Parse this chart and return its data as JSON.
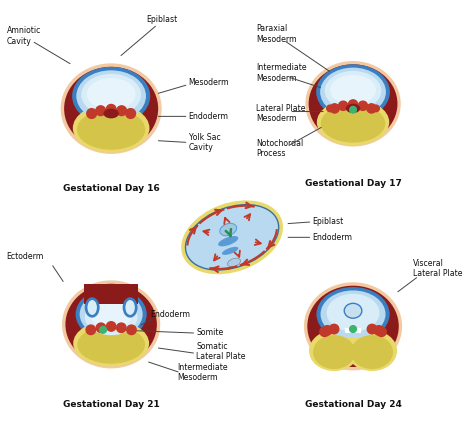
{
  "bg_color": "#ffffff",
  "skin_color": "#f2c9a0",
  "dark_red": "#8B1A1A",
  "red_color": "#c0392b",
  "blue_ring": "#3a7fc1",
  "light_blue": "#b8d9f0",
  "very_light_blue": "#d8edf8",
  "inner_blue": "#e8f4fb",
  "yellow_outer": "#e8d96a",
  "yellow_inner": "#d4c44a",
  "green_dot": "#3cb371",
  "arrow_red": "#c0392b",
  "arrow_green": "#2e8b57",
  "text_color": "#111111",
  "line_color": "#444444",
  "day16_title": "Gestational Day 16",
  "day17_title": "Gestational Day 17",
  "day21_title": "Gestational Day 21",
  "day24_title": "Gestational Day 24"
}
